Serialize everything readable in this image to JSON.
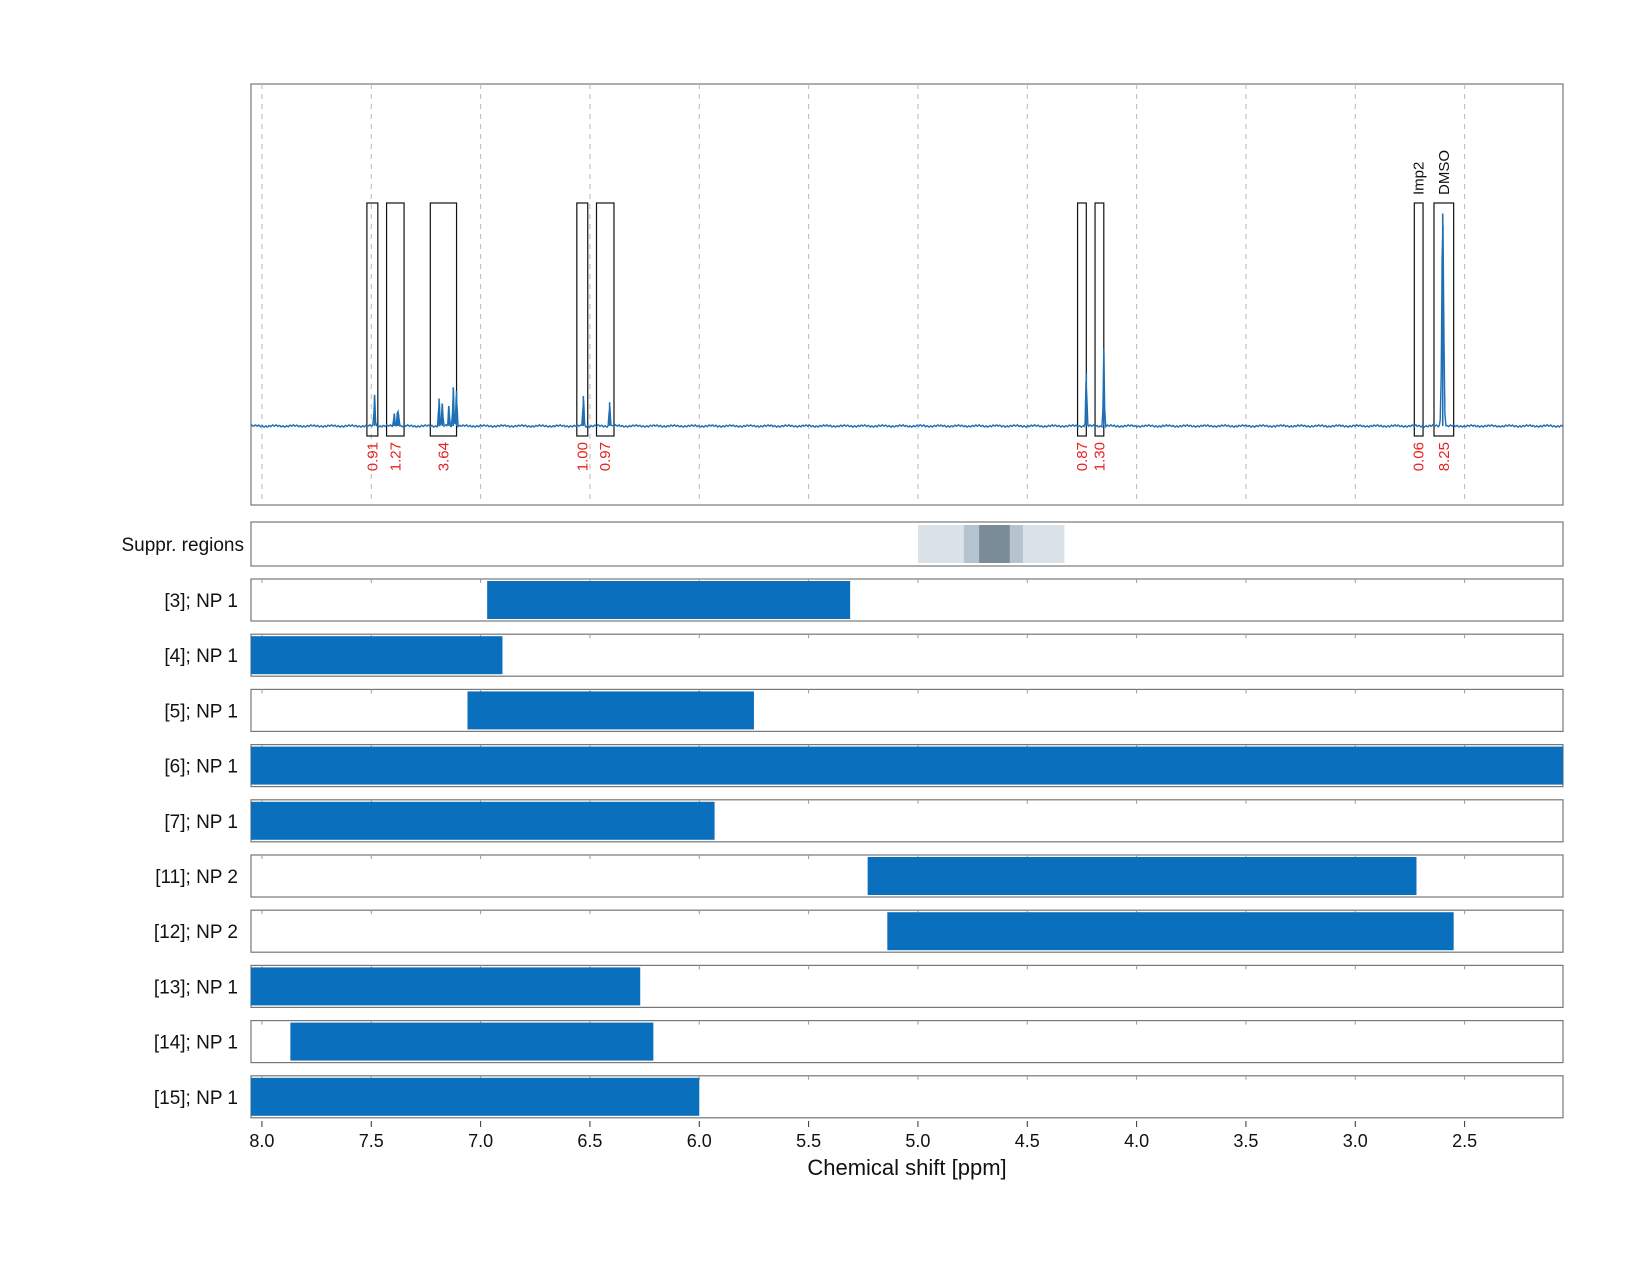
{
  "chart_data": {
    "type": "line",
    "xlabel": "Chemical shift [ppm]",
    "xlim": [
      8.05,
      2.05
    ],
    "x_reversed": true,
    "x_ticks": [
      8.0,
      7.5,
      7.0,
      6.5,
      6.0,
      5.5,
      5.0,
      4.5,
      4.0,
      3.5,
      3.0,
      2.5
    ],
    "x_tick_labels": [
      "8.0",
      "7.5",
      "7.0",
      "6.5",
      "6.0",
      "5.5",
      "5.0",
      "4.5",
      "4.0",
      "3.5",
      "3.0",
      "2.5"
    ],
    "grid": "vertical dashed",
    "spectrum": {
      "color": "#1f6fb5",
      "peaks": [
        {
          "x": 7.485,
          "height": 0.125
        },
        {
          "x": 7.395,
          "height": 0.05
        },
        {
          "x": 7.38,
          "height": 0.055
        },
        {
          "x": 7.375,
          "height": 0.045
        },
        {
          "x": 7.19,
          "height": 0.11
        },
        {
          "x": 7.175,
          "height": 0.09
        },
        {
          "x": 7.145,
          "height": 0.08
        },
        {
          "x": 7.125,
          "height": 0.155
        },
        {
          "x": 7.11,
          "height": 0.14
        },
        {
          "x": 6.53,
          "height": 0.12
        },
        {
          "x": 6.41,
          "height": 0.095
        },
        {
          "x": 4.23,
          "height": 0.21
        },
        {
          "x": 4.15,
          "height": 0.31
        },
        {
          "x": 2.6,
          "height": 0.85
        }
      ]
    },
    "integration_regions": [
      {
        "start": 7.52,
        "end": 7.47,
        "value": "0.91"
      },
      {
        "start": 7.43,
        "end": 7.35,
        "value": "1.27"
      },
      {
        "start": 7.23,
        "end": 7.11,
        "value": "3.64"
      },
      {
        "start": 6.56,
        "end": 6.51,
        "value": "1.00"
      },
      {
        "start": 6.47,
        "end": 6.39,
        "value": "0.97"
      },
      {
        "start": 4.27,
        "end": 4.23,
        "value": "0.87"
      },
      {
        "start": 4.19,
        "end": 4.15,
        "value": "1.30"
      },
      {
        "start": 2.73,
        "end": 2.69,
        "value": "0.06",
        "label": "Imp2"
      },
      {
        "start": 2.64,
        "end": 2.55,
        "value": "8.25",
        "label": "DMSO"
      }
    ],
    "suppression_region": {
      "label": "Suppr. regions",
      "bands": [
        {
          "start": 5.0,
          "end": 4.33,
          "level": 1
        },
        {
          "start": 4.79,
          "end": 4.52,
          "level": 2
        },
        {
          "start": 4.72,
          "end": 4.58,
          "level": 3
        }
      ],
      "colors": [
        "#dbe3ea",
        "#b5c3ce",
        "#7a8c98"
      ]
    },
    "range_rows": [
      {
        "label": "[3]; NP 1",
        "start": 6.97,
        "end": 5.31
      },
      {
        "label": "[4]; NP 1",
        "start": 8.05,
        "end": 6.9
      },
      {
        "label": "[5]; NP 1",
        "start": 7.06,
        "end": 5.75
      },
      {
        "label": "[6]; NP 1",
        "start": 8.05,
        "end": 2.05
      },
      {
        "label": "[7]; NP 1",
        "start": 8.05,
        "end": 5.93
      },
      {
        "label": "[11]; NP 2",
        "start": 5.23,
        "end": 2.72
      },
      {
        "label": "[12]; NP 2",
        "start": 5.14,
        "end": 2.55
      },
      {
        "label": "[13]; NP 1",
        "start": 8.05,
        "end": 6.27
      },
      {
        "label": "[14]; NP 1",
        "start": 7.87,
        "end": 6.21
      },
      {
        "label": "[15]; NP 1",
        "start": 8.05,
        "end": 6.0
      }
    ],
    "bar_color": "#0a6fbd",
    "integral_label_color": "#e8211f"
  }
}
